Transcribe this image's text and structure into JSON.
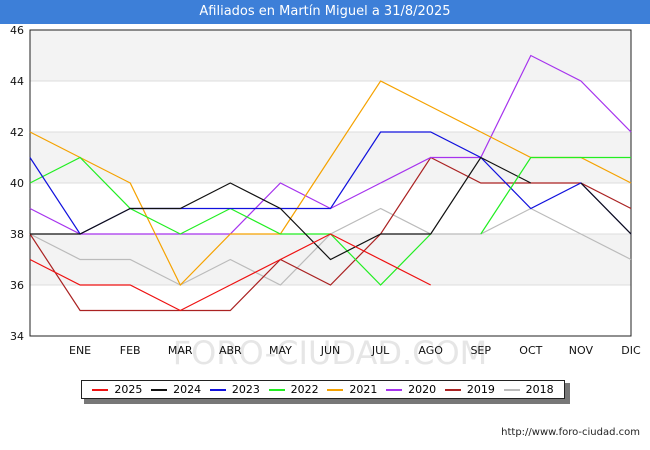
{
  "title": "Afiliados en Martín Miguel a 31/8/2025",
  "source": "http://www.foro-ciudad.com",
  "watermark": "FORO-CIUDAD.COM",
  "colors": {
    "title_bg": "#3d7fd8",
    "band": "#f3f3f3",
    "grid": "#dddddd",
    "axis": "#222222"
  },
  "chart_data": {
    "type": "line",
    "title": "Afiliados en Martín Miguel a 31/8/2025",
    "x": [
      "",
      "ENE",
      "FEB",
      "MAR",
      "ABR",
      "MAY",
      "JUN",
      "JUL",
      "AGO",
      "SEP",
      "OCT",
      "NOV",
      "DIC"
    ],
    "ylim": [
      34,
      46
    ],
    "yticks": [
      34,
      36,
      38,
      40,
      42,
      44,
      46
    ],
    "grid": true,
    "legend_position": "bottom",
    "series": [
      {
        "name": "2025",
        "color": "#ee1111",
        "values": [
          37,
          36,
          36,
          35,
          36,
          37,
          38,
          37,
          36,
          null,
          null,
          null,
          null
        ]
      },
      {
        "name": "2024",
        "color": "#111111",
        "values": [
          38,
          38,
          39,
          39,
          40,
          39,
          37,
          38,
          38,
          41,
          40,
          null,
          null
        ]
      },
      {
        "name": "2023",
        "color": "#1111dd",
        "values": [
          41,
          38,
          39,
          39,
          39,
          39,
          39,
          42,
          42,
          41,
          39,
          40,
          38
        ]
      },
      {
        "name": "2022",
        "color": "#22ee22",
        "values": [
          40,
          41,
          39,
          38,
          39,
          38,
          38,
          36,
          38,
          null,
          null,
          null,
          null
        ]
      },
      {
        "name": "2021",
        "color": "#f5a200",
        "values": [
          42,
          41,
          40,
          36,
          38,
          38,
          41,
          44,
          43,
          42,
          41,
          41,
          40
        ]
      },
      {
        "name": "2020",
        "color": "#a633ee",
        "values": [
          39,
          38,
          38,
          38,
          38,
          40,
          39,
          40,
          41,
          41,
          45,
          44,
          42
        ]
      },
      {
        "name": "2019",
        "color": "#aa2222",
        "values": [
          38,
          35,
          35,
          35,
          35,
          37,
          36,
          38,
          41,
          40,
          40,
          40,
          39
        ]
      },
      {
        "name": "2018",
        "color": "#bbbbbb",
        "values": [
          38,
          37,
          37,
          36,
          37,
          36,
          38,
          39,
          38,
          38,
          39,
          38,
          37
        ]
      }
    ],
    "extra_segments": [
      {
        "series": "2022",
        "points": [
          [
            9,
            38
          ],
          [
            10,
            41
          ],
          [
            11,
            41
          ],
          [
            12,
            41
          ]
        ]
      },
      {
        "series": "2024",
        "points": [
          [
            11,
            40
          ],
          [
            12,
            38
          ]
        ]
      }
    ]
  }
}
